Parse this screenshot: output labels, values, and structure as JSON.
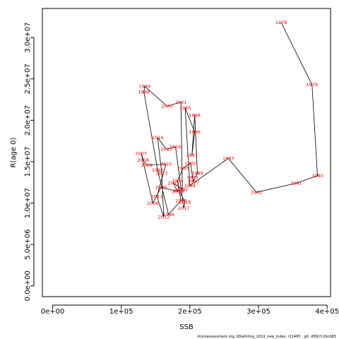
{
  "chart_data": {
    "type": "line",
    "xlabel": "SSB",
    "ylabel": "R(age 0)",
    "xlim": [
      -15000,
      405000
    ],
    "ylim": [
      -1300000,
      33500000
    ],
    "x_ticks": [
      0,
      100000,
      200000,
      300000,
      400000
    ],
    "x_tick_labels": [
      "0e+00",
      "1e+05",
      "2e+05",
      "3e+05",
      "4e+05"
    ],
    "y_ticks": [
      0,
      5000000,
      10000000,
      15000000,
      20000000,
      25000000,
      30000000
    ],
    "y_tick_labels": [
      "0.0e+00",
      "5.0e+06",
      "1.0e+07",
      "1.5e+07",
      "2.0e+07",
      "2.5e+07",
      "3.0e+07"
    ],
    "line_color": "#000000",
    "label_color": "#ff0000",
    "grid": false,
    "series": [
      {
        "points": [
          {
            "year": "1978",
            "x": 333000,
            "y": 31800000
          },
          {
            "year": "1979",
            "x": 378000,
            "y": 24300000
          },
          {
            "year": "1980",
            "x": 386000,
            "y": 13300000
          },
          {
            "year": "1981",
            "x": 355000,
            "y": 12400000
          },
          {
            "year": "1982",
            "x": 297000,
            "y": 11300000
          },
          {
            "year": "1983",
            "x": 256000,
            "y": 15400000
          },
          {
            "year": "1984",
            "x": 200000,
            "y": 12100000
          },
          {
            "year": "1985",
            "x": 193000,
            "y": 21500000
          },
          {
            "year": "1986",
            "x": 207000,
            "y": 18600000
          },
          {
            "year": "1987",
            "x": 203000,
            "y": 15800000
          },
          {
            "year": "1988",
            "x": 207000,
            "y": 20600000
          },
          {
            "year": "1989",
            "x": 211000,
            "y": 13600000
          },
          {
            "year": "1990",
            "x": 205000,
            "y": 12600000
          },
          {
            "year": "1991",
            "x": 204000,
            "y": 13100000
          },
          {
            "year": "1992",
            "x": 201000,
            "y": 14800000
          },
          {
            "year": "1993",
            "x": 190000,
            "y": 14200000
          },
          {
            "year": "1994",
            "x": 182000,
            "y": 12700000
          },
          {
            "year": "1995",
            "x": 187000,
            "y": 10300000
          },
          {
            "year": "1996",
            "x": 169000,
            "y": 8600000
          },
          {
            "year": "1997",
            "x": 153000,
            "y": 14000000
          },
          {
            "year": "1998",
            "x": 133000,
            "y": 23400000
          },
          {
            "year": "1999",
            "x": 134000,
            "y": 24100000
          },
          {
            "year": "2000",
            "x": 167000,
            "y": 21700000
          },
          {
            "year": "2001",
            "x": 187000,
            "y": 22200000
          },
          {
            "year": "2002",
            "x": 189000,
            "y": 11700000
          },
          {
            "year": "2003",
            "x": 176000,
            "y": 12400000
          },
          {
            "year": "2004",
            "x": 182000,
            "y": 11400000
          },
          {
            "year": "2005",
            "x": 158000,
            "y": 11900000
          },
          {
            "year": "2006",
            "x": 146000,
            "y": 10000000
          },
          {
            "year": "2007",
            "x": 129000,
            "y": 16000000
          },
          {
            "year": "2008",
            "x": 132000,
            "y": 15200000
          },
          {
            "year": "2009",
            "x": 137000,
            "y": 14600000
          },
          {
            "year": "2010",
            "x": 165000,
            "y": 14700000
          },
          {
            "year": "2011",
            "x": 152000,
            "y": 10800000
          },
          {
            "year": "2012",
            "x": 162000,
            "y": 8300000
          },
          {
            "year": "2013",
            "x": 159000,
            "y": 13600000
          },
          {
            "year": "2014",
            "x": 153000,
            "y": 17900000
          },
          {
            "year": "2015",
            "x": 166000,
            "y": 16500000
          },
          {
            "year": "2016",
            "x": 179000,
            "y": 16800000
          },
          {
            "year": "2017",
            "x": 191000,
            "y": 9400000
          },
          {
            "year": "2018",
            "x": 193000,
            "y": 10100000
          },
          {
            "year": "2019",
            "x": 184000,
            "y": 11500000
          }
        ]
      }
    ]
  },
  "footer": "stockassessment.org, NSwhiting_2019_new_index, r11465 , git: df0b7c1bcb83"
}
